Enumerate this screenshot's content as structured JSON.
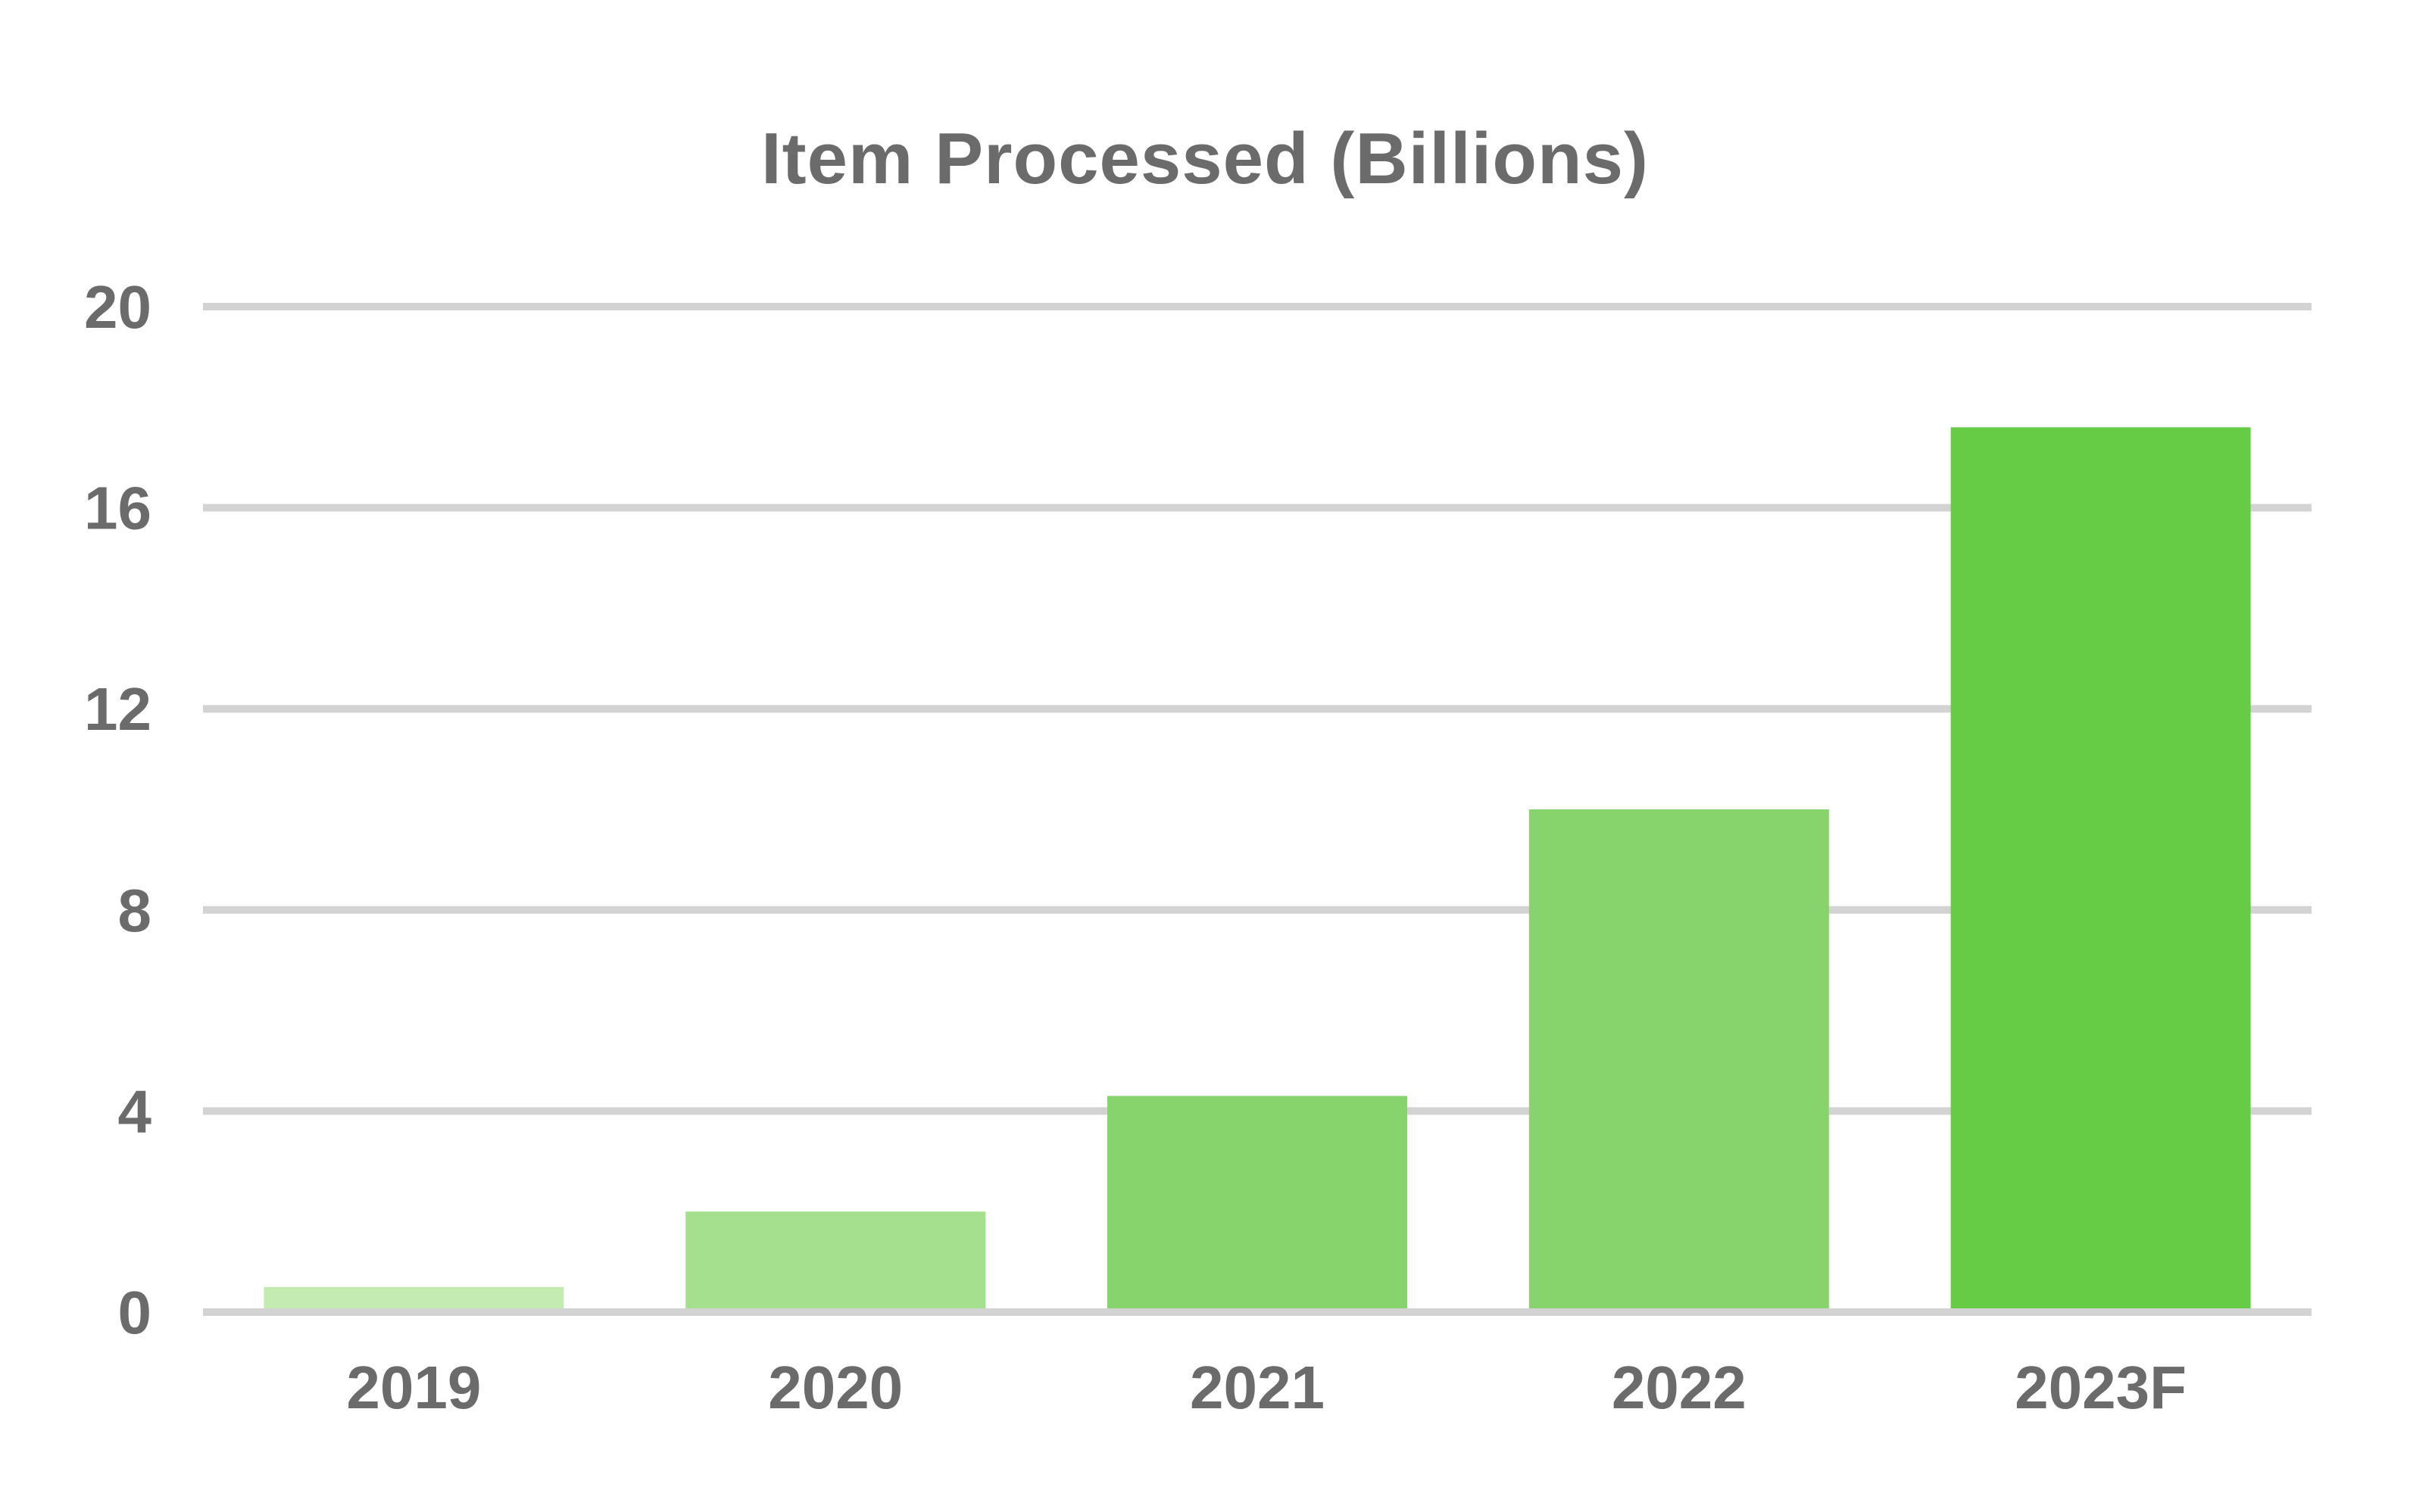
{
  "chart_data": {
    "type": "bar",
    "title": "Item Processed (Billions)",
    "xlabel": "",
    "ylabel": "",
    "categories": [
      "2019",
      "2020",
      "2021",
      "2022",
      "2023F"
    ],
    "values": [
      0.5,
      2.0,
      4.3,
      10.0,
      17.6
    ],
    "colors": [
      "#c4ebb2",
      "#a5e08f",
      "#88d46c",
      "#88d46c",
      "#66cb45"
    ],
    "ylim": [
      0,
      20
    ],
    "yticks": [
      0,
      4,
      8,
      12,
      16,
      20
    ],
    "ytick_labels": [
      "0",
      "4",
      "8",
      "12",
      "16",
      "20"
    ],
    "grid": true,
    "gridline_color": "#d3d3d3",
    "text_color": "#6b6b6b",
    "legend": "none"
  }
}
